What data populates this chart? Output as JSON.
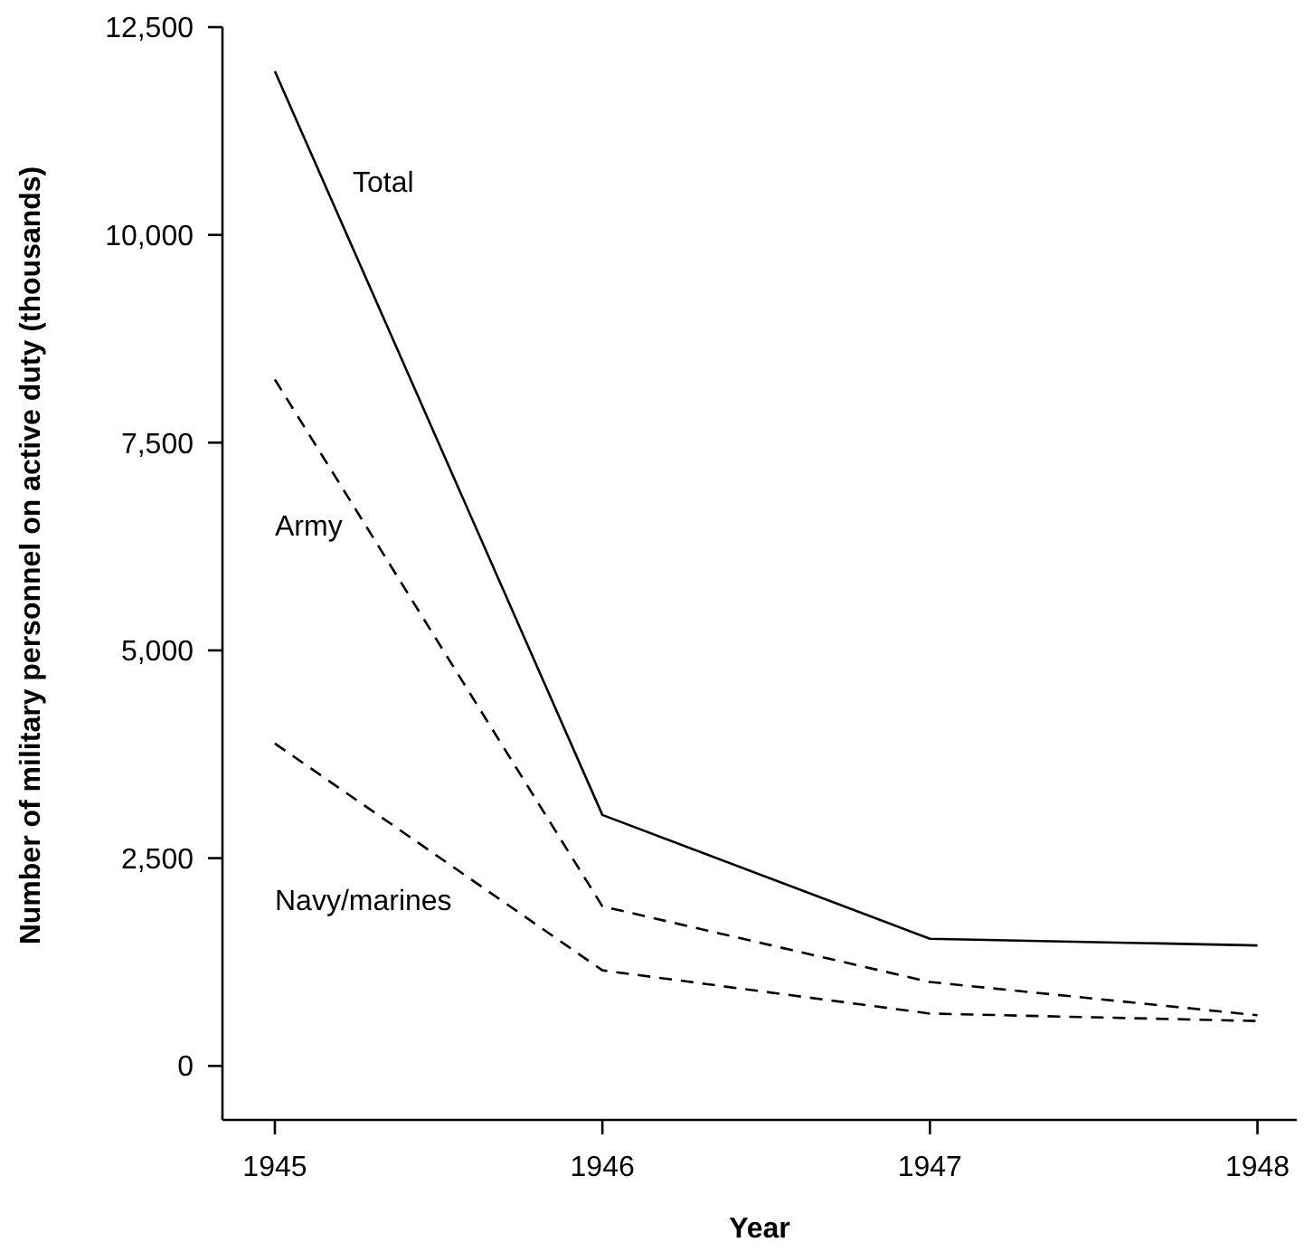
{
  "chart_data": {
    "type": "line",
    "xlabel": "Year",
    "ylabel": "Number of military personnel on active duty (thousands)",
    "x": [
      1945,
      1946,
      1947,
      1948
    ],
    "series": [
      {
        "name": "Total",
        "color": "#000000",
        "line_style": "solid",
        "values": [
          11970,
          3020,
          1530,
          1450
        ]
      },
      {
        "name": "Army",
        "color": "#000000",
        "line_style": "dashed",
        "values": [
          8260,
          1920,
          1010,
          610
        ]
      },
      {
        "name": "Navy/marines",
        "color": "#000000",
        "line_style": "dashed",
        "values": [
          3880,
          1150,
          630,
          540
        ]
      }
    ],
    "xlim": [
      1944.84,
      1948.12
    ],
    "xticks": [
      1945,
      1946,
      1947,
      1948
    ],
    "ylim": [
      -650,
      12500
    ],
    "yticks": [
      {
        "value": 0,
        "label": "0"
      },
      {
        "value": 2500,
        "label": "2,500"
      },
      {
        "value": 5000,
        "label": "5,000"
      },
      {
        "value": 7500,
        "label": "7,500"
      },
      {
        "value": 10000,
        "label": "10,000"
      },
      {
        "value": 12500,
        "label": "12,500"
      }
    ],
    "grid": false,
    "marker": "none"
  }
}
